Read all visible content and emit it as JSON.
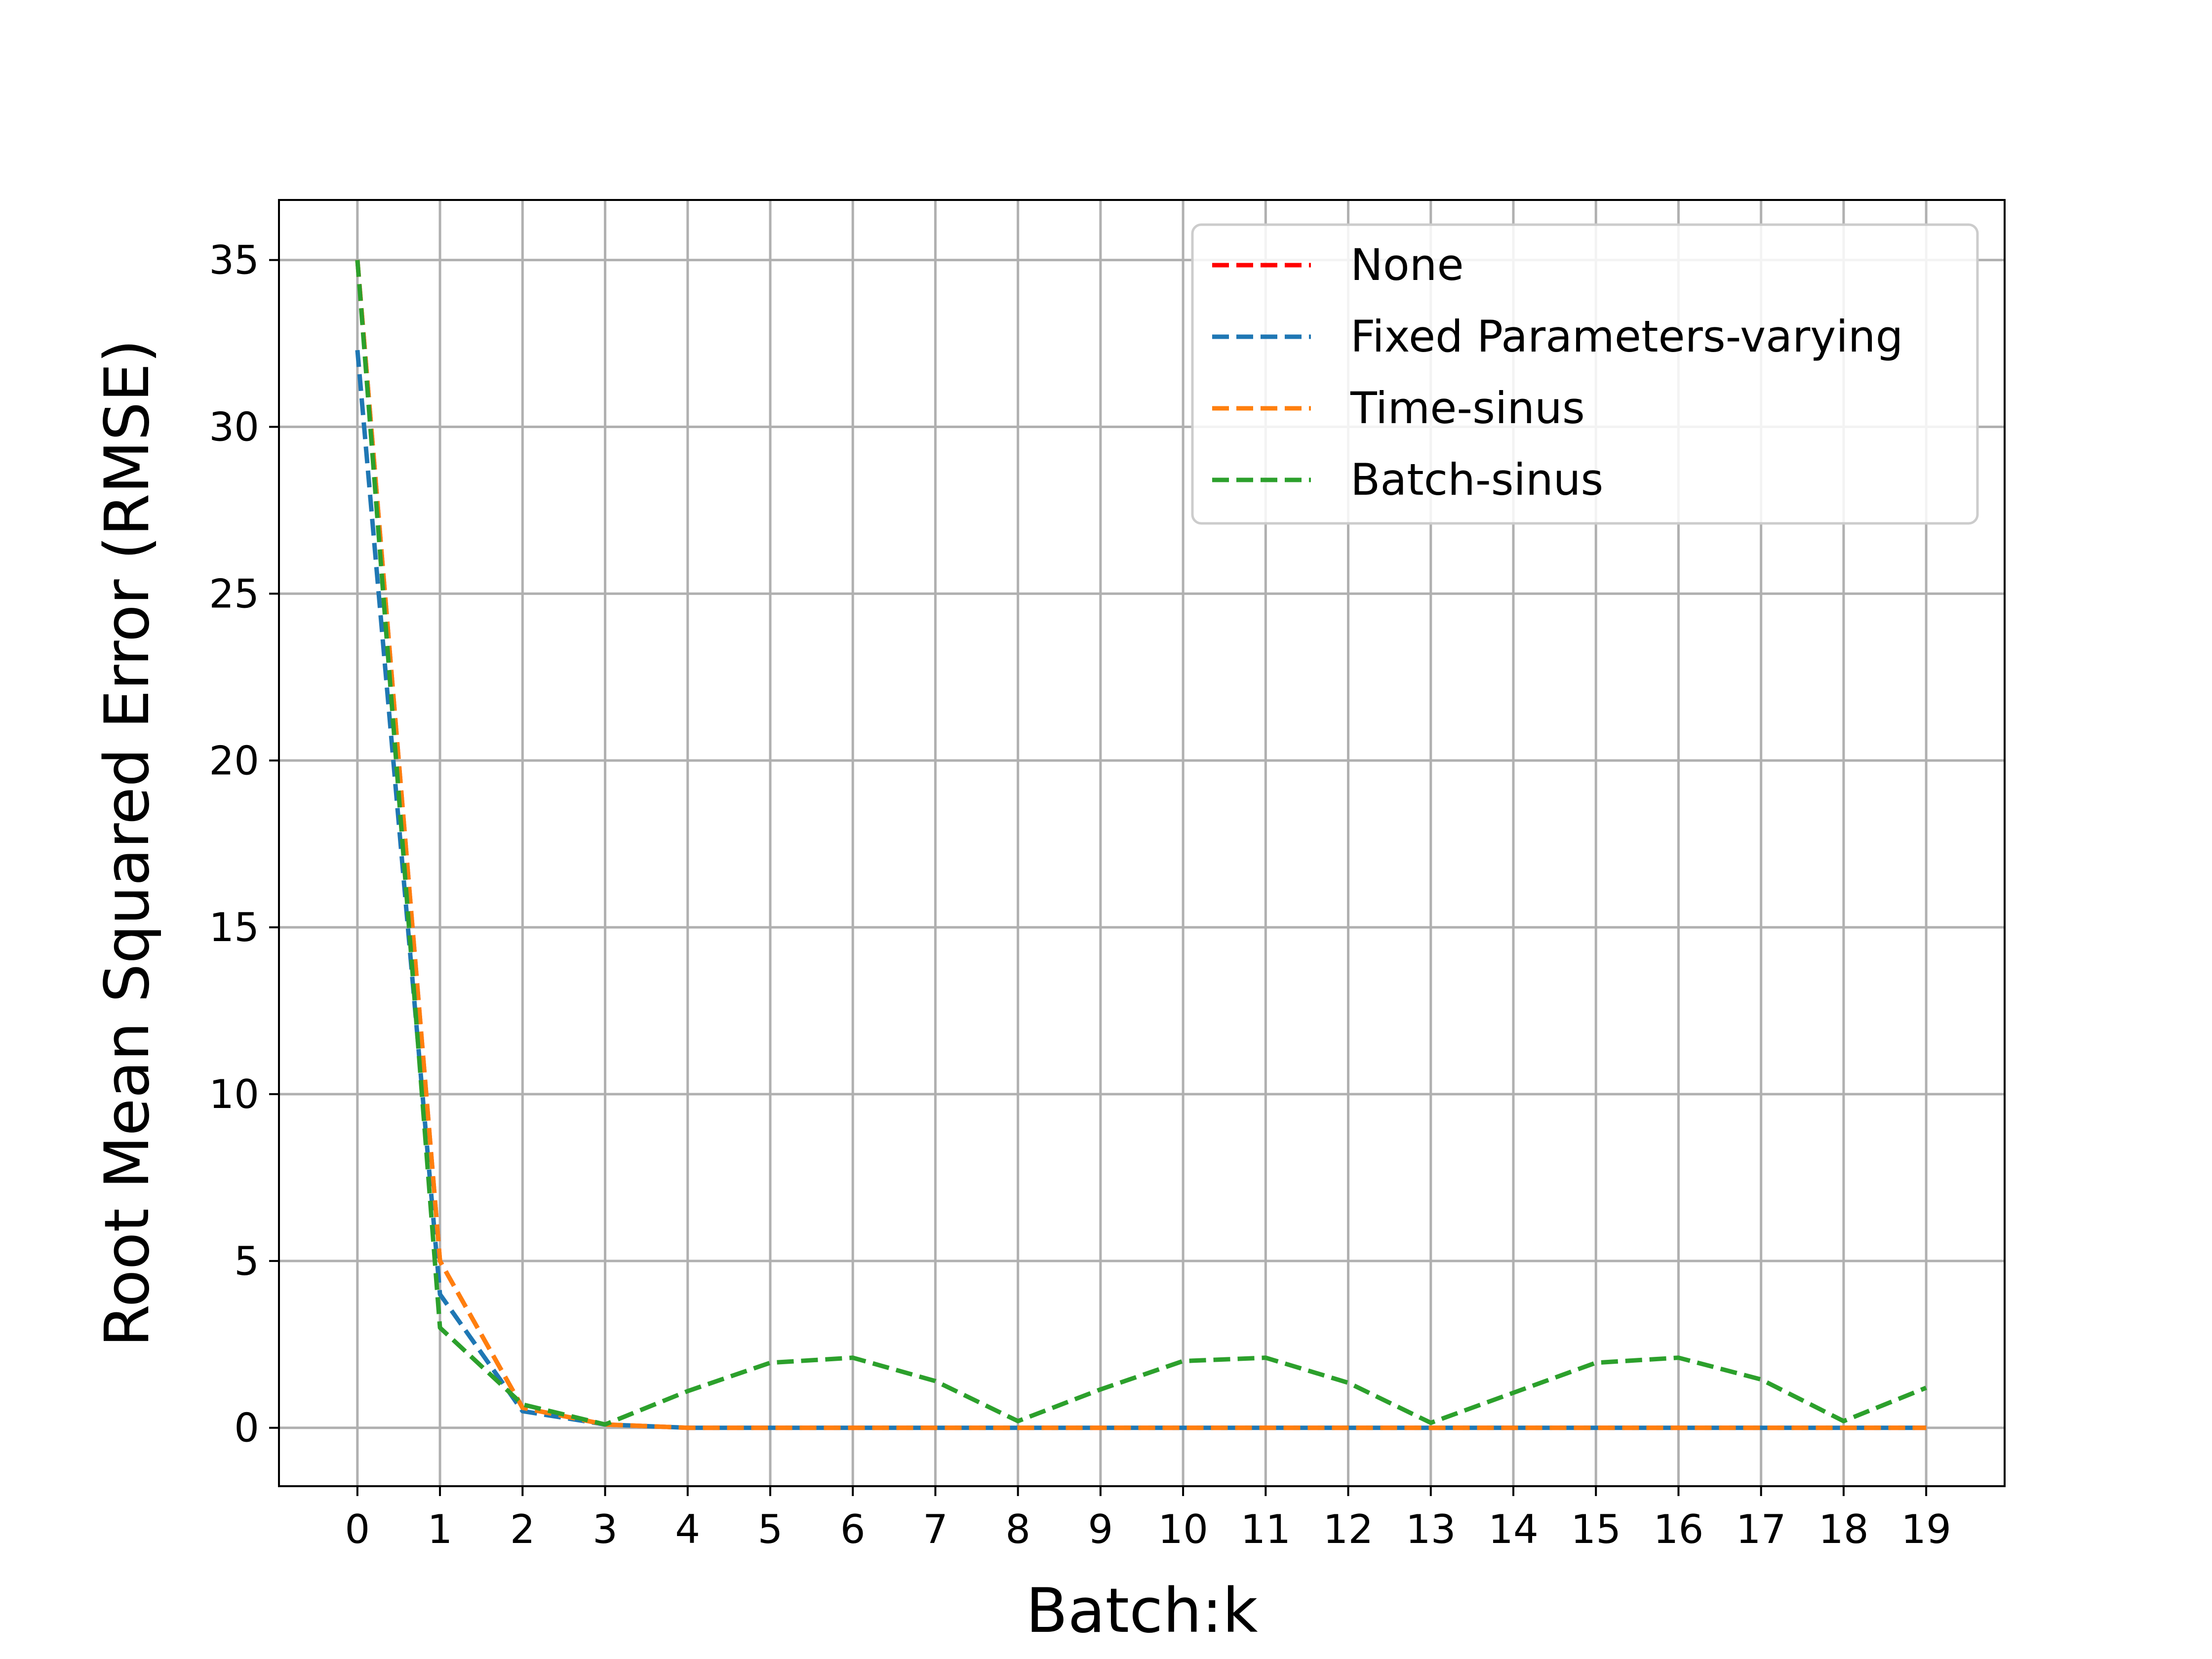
{
  "chart_data": {
    "type": "line",
    "title": "",
    "xlabel": "Batch:k",
    "ylabel": "Root Mean Squared Error (RMSE)",
    "x": [
      0,
      1,
      2,
      3,
      4,
      5,
      6,
      7,
      8,
      9,
      10,
      11,
      12,
      13,
      14,
      15,
      16,
      17,
      18,
      19
    ],
    "xticks": [
      "0",
      "1",
      "2",
      "3",
      "4",
      "5",
      "6",
      "7",
      "8",
      "9",
      "10",
      "11",
      "12",
      "13",
      "14",
      "15",
      "16",
      "17",
      "18",
      "19"
    ],
    "yticks": [
      0,
      5,
      10,
      15,
      20,
      25,
      30,
      35
    ],
    "xlim": [
      -0.95,
      19.95
    ],
    "ylim": [
      -1.75,
      36.8
    ],
    "grid": true,
    "legend_position": "top-right",
    "line_style": "dashed",
    "series": [
      {
        "name": "None",
        "color": "#ff0000",
        "values": [
          35.0,
          5.0,
          0.6,
          0.1,
          0.0,
          0.0,
          0.0,
          0.0,
          0.0,
          0.0,
          0.0,
          0.0,
          0.0,
          0.0,
          0.0,
          0.0,
          0.0,
          0.0,
          0.0,
          0.0
        ]
      },
      {
        "name": "Fixed Parameters-varying",
        "color": "#1f77b4",
        "values": [
          32.3,
          4.0,
          0.5,
          0.1,
          0.0,
          0.0,
          0.0,
          0.0,
          0.0,
          0.0,
          0.0,
          0.0,
          0.0,
          0.0,
          0.0,
          0.0,
          0.0,
          0.0,
          0.0,
          0.0
        ]
      },
      {
        "name": "Time-sinus",
        "color": "#ff7f0e",
        "values": [
          35.0,
          5.0,
          0.6,
          0.1,
          0.0,
          0.0,
          0.0,
          0.0,
          0.0,
          0.0,
          0.0,
          0.0,
          0.0,
          0.0,
          0.0,
          0.0,
          0.0,
          0.0,
          0.0,
          0.0
        ]
      },
      {
        "name": "Batch-sinus",
        "color": "#2ca02c",
        "values": [
          35.0,
          3.0,
          0.7,
          0.1,
          1.1,
          1.95,
          2.1,
          1.4,
          0.2,
          1.15,
          2.0,
          2.1,
          1.35,
          0.15,
          1.05,
          1.95,
          2.1,
          1.45,
          0.2,
          1.2
        ]
      }
    ]
  }
}
